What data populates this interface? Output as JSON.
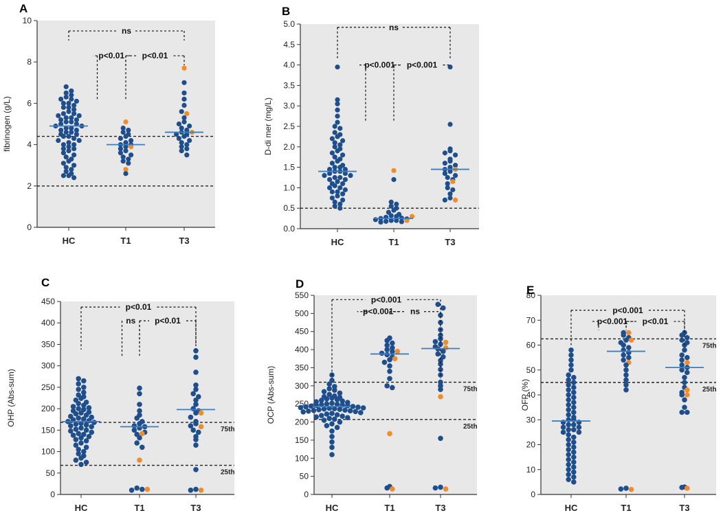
{
  "colors": {
    "background": "#e8e8e8",
    "healthy": "#1f4e8c",
    "highlight": "#f28c28",
    "median": "#3a7fc1",
    "reference": "#222222"
  },
  "chart_data": [
    {
      "panel": "A",
      "type": "scatter",
      "ylabel": "fibrinogen (g/L)",
      "categories": [
        "HC",
        "T1",
        "T3"
      ],
      "ylim": [
        0,
        10
      ],
      "yticks": [
        0,
        2,
        4,
        6,
        8,
        10
      ],
      "ref_lines": [
        {
          "y": 4.4
        },
        {
          "y": 2.0
        }
      ],
      "medians": [
        4.9,
        4.0,
        4.6
      ],
      "series": [
        {
          "name": "HC",
          "category": "HC",
          "blue": [
            6.8,
            6.6,
            6.5,
            6.4,
            6.3,
            6.2,
            6.2,
            6.1,
            6.0,
            6.0,
            5.9,
            5.8,
            5.8,
            5.7,
            5.6,
            5.5,
            5.5,
            5.4,
            5.4,
            5.3,
            5.3,
            5.2,
            5.2,
            5.1,
            5.1,
            5.0,
            5.0,
            4.9,
            4.9,
            4.8,
            4.8,
            4.7,
            4.7,
            4.6,
            4.6,
            4.5,
            4.5,
            4.4,
            4.4,
            4.3,
            4.2,
            4.2,
            4.1,
            4.0,
            4.0,
            3.9,
            3.8,
            3.8,
            3.7,
            3.6,
            3.5,
            3.4,
            3.3,
            3.2,
            3.1,
            3.0,
            2.9,
            2.8,
            2.7,
            2.6,
            2.5,
            2.5,
            2.4
          ],
          "orange": []
        },
        {
          "name": "T1",
          "category": "T1",
          "blue": [
            4.8,
            4.7,
            4.6,
            4.5,
            4.4,
            4.3,
            4.2,
            4.1,
            4.0,
            4.0,
            3.9,
            3.8,
            3.7,
            3.6,
            3.5,
            3.4,
            3.3,
            3.2,
            3.1,
            2.6
          ],
          "orange": [
            5.1,
            3.9,
            2.8
          ]
        },
        {
          "name": "T3",
          "category": "T3",
          "blue": [
            7.0,
            6.5,
            6.2,
            5.9,
            5.6,
            5.3,
            5.1,
            5.0,
            4.9,
            4.8,
            4.7,
            4.6,
            4.5,
            4.5,
            4.4,
            4.3,
            4.2,
            4.1,
            4.0,
            3.9,
            3.8,
            3.7,
            3.5
          ],
          "orange": [
            7.7,
            5.5,
            4.6
          ]
        }
      ],
      "comparisons": [
        {
          "label": "ns",
          "from": 0,
          "to": 2,
          "level": 9.5
        },
        {
          "label": "p<0.01",
          "from": 0.5,
          "to": 1,
          "level": 8.3,
          "join": 1,
          "leg_bottom": 6.2
        },
        {
          "label": "p<0.01",
          "from": 1,
          "to": 2,
          "level": 8.3,
          "join": 1
        }
      ]
    },
    {
      "panel": "B",
      "type": "scatter",
      "ylabel": "D-di mer (mg/L)",
      "categories": [
        "HC",
        "T1",
        "T3"
      ],
      "ylim": [
        0,
        5
      ],
      "yticks": [
        0,
        0.5,
        1.0,
        1.5,
        2.0,
        2.5,
        3.0,
        3.5,
        4.0,
        4.5,
        5.0
      ],
      "ytick_labels": [
        "0.0",
        "0.5",
        "1.0",
        "1.5",
        "2.0",
        "2.5",
        "3.0",
        "3.5",
        "4.0",
        "4.5",
        "5.0"
      ],
      "ref_lines": [
        {
          "y": 0.5
        }
      ],
      "medians": [
        1.4,
        0.25,
        1.45
      ],
      "series": [
        {
          "name": "HC",
          "category": "HC",
          "blue": [
            3.95,
            3.15,
            3.05,
            2.9,
            2.75,
            2.6,
            2.5,
            2.45,
            2.35,
            2.3,
            2.25,
            2.2,
            2.15,
            2.1,
            2.05,
            2.0,
            1.95,
            1.9,
            1.85,
            1.8,
            1.75,
            1.7,
            1.65,
            1.6,
            1.55,
            1.5,
            1.5,
            1.45,
            1.45,
            1.4,
            1.4,
            1.35,
            1.35,
            1.3,
            1.3,
            1.25,
            1.25,
            1.2,
            1.2,
            1.15,
            1.1,
            1.1,
            1.05,
            1.0,
            1.0,
            0.95,
            0.9,
            0.9,
            0.85,
            0.8,
            0.75,
            0.7,
            0.65,
            0.6,
            0.55,
            0.5
          ],
          "orange": []
        },
        {
          "name": "T1",
          "category": "T1",
          "blue": [
            1.2,
            0.65,
            0.6,
            0.55,
            0.5,
            0.45,
            0.4,
            0.35,
            0.32,
            0.3,
            0.28,
            0.26,
            0.25,
            0.24,
            0.22,
            0.2,
            0.2,
            0.18,
            0.17,
            0.16
          ],
          "orange": [
            1.42,
            0.3,
            0.2
          ]
        },
        {
          "name": "T3",
          "category": "T3",
          "blue": [
            3.95,
            2.55,
            1.95,
            1.9,
            1.85,
            1.8,
            1.7,
            1.65,
            1.6,
            1.55,
            1.5,
            1.45,
            1.4,
            1.35,
            1.3,
            1.25,
            1.2,
            1.1,
            1.0,
            0.95,
            0.85,
            0.75,
            0.7
          ],
          "orange": [
            1.45,
            1.15,
            0.7
          ]
        }
      ],
      "comparisons": [
        {
          "label": "ns",
          "from": 0,
          "to": 2,
          "level": 4.92,
          "gap": 0.6,
          "leg_bottom": 4.15
        },
        {
          "label": "p<0.001",
          "from": 0.5,
          "to": 1,
          "level": 4.0,
          "join": 1,
          "leg_bottom": 2.6
        },
        {
          "label": "p<0.001",
          "from": 1,
          "to": 2,
          "level": 4.0,
          "join": 1,
          "leg_bottom": 4.0
        }
      ]
    },
    {
      "panel": "C",
      "type": "scatter",
      "ylabel": "OHP (Abs-sum)",
      "categories": [
        "HC",
        "T1",
        "T3"
      ],
      "ylim": [
        0,
        450
      ],
      "yticks": [
        0,
        50,
        100,
        150,
        200,
        250,
        300,
        350,
        400,
        450
      ],
      "ref_lines": [
        {
          "y": 168,
          "label": "75th"
        },
        {
          "y": 68,
          "label": "25th"
        }
      ],
      "medians": [
        170,
        158,
        198
      ],
      "series": [
        {
          "name": "HC",
          "category": "HC",
          "blue": [
            270,
            265,
            258,
            250,
            245,
            238,
            232,
            228,
            224,
            220,
            215,
            212,
            208,
            205,
            202,
            200,
            198,
            195,
            192,
            190,
            188,
            185,
            182,
            180,
            178,
            176,
            174,
            172,
            170,
            168,
            166,
            164,
            162,
            160,
            158,
            155,
            152,
            150,
            148,
            145,
            142,
            140,
            138,
            135,
            132,
            128,
            125,
            120,
            115,
            110,
            105,
            100,
            95,
            90,
            85,
            80,
            75,
            70
          ],
          "orange": []
        },
        {
          "name": "T1",
          "category": "T1",
          "blue": [
            248,
            235,
            210,
            195,
            185,
            178,
            170,
            165,
            160,
            158,
            155,
            150,
            145,
            140,
            132,
            120,
            110,
            15,
            12,
            10
          ],
          "orange": [
            142,
            80,
            12
          ]
        },
        {
          "name": "T3",
          "category": "T3",
          "blue": [
            335,
            320,
            285,
            255,
            245,
            235,
            228,
            220,
            210,
            200,
            195,
            190,
            180,
            170,
            165,
            160,
            150,
            145,
            135,
            128,
            115,
            58,
            12,
            10
          ],
          "orange": [
            190,
            158,
            10
          ]
        }
      ],
      "comparisons": [
        {
          "label": "p<0.01",
          "from": 0,
          "to": 2,
          "level": 437,
          "leg_bottom": 338
        },
        {
          "label": "ns",
          "from": 0.7,
          "to": 1,
          "level": 405,
          "join": 1,
          "leg_bottom": 320
        },
        {
          "label": "p<0.01",
          "from": 1,
          "to": 2,
          "level": 405,
          "join": 1,
          "leg_bottom": 350
        }
      ]
    },
    {
      "panel": "D",
      "type": "scatter",
      "ylabel": "OCP (Abs-sum)",
      "categories": [
        "HC",
        "T1",
        "T3"
      ],
      "ylim": [
        0,
        550
      ],
      "yticks": [
        0,
        50,
        100,
        150,
        200,
        250,
        300,
        350,
        400,
        450,
        500,
        550
      ],
      "ref_lines": [
        {
          "y": 310,
          "label": "75th"
        },
        {
          "y": 207,
          "label": "25th"
        }
      ],
      "medians": [
        243,
        388,
        403
      ],
      "series": [
        {
          "name": "HC",
          "category": "HC",
          "blue": [
            330,
            315,
            305,
            298,
            292,
            288,
            284,
            280,
            276,
            272,
            270,
            268,
            266,
            264,
            262,
            260,
            258,
            256,
            254,
            252,
            250,
            249,
            248,
            247,
            246,
            245,
            244,
            243,
            242,
            241,
            240,
            239,
            238,
            237,
            236,
            235,
            234,
            233,
            232,
            231,
            230,
            229,
            228,
            226,
            224,
            222,
            220,
            218,
            216,
            214,
            212,
            210,
            208,
            205,
            200,
            195,
            190,
            185,
            175,
            160,
            145,
            130,
            110
          ],
          "orange": []
        },
        {
          "name": "T1",
          "category": "T1",
          "blue": [
            432,
            425,
            418,
            412,
            405,
            400,
            395,
            390,
            386,
            380,
            372,
            365,
            355,
            340,
            320,
            300,
            295,
            22,
            18
          ],
          "orange": [
            395,
            375,
            168,
            15
          ]
        },
        {
          "name": "T3",
          "category": "T3",
          "blue": [
            525,
            515,
            495,
            475,
            455,
            440,
            430,
            422,
            415,
            408,
            402,
            395,
            388,
            380,
            370,
            360,
            345,
            330,
            310,
            300,
            290,
            155,
            20,
            18
          ],
          "orange": [
            420,
            405,
            270,
            15
          ]
        }
      ],
      "comparisons": [
        {
          "label": "p<0.001",
          "from": 0,
          "to": 2,
          "level": 538,
          "leg_bottom": 320
        },
        {
          "label": "p<0.001",
          "from": 0.6,
          "to": 1,
          "level": 505,
          "join": 1,
          "leg_bottom": 500
        },
        {
          "label": "ns",
          "from": 1,
          "to": 2,
          "level": 505,
          "join": 1,
          "leg_bottom": 500
        }
      ]
    },
    {
      "panel": "E",
      "type": "scatter",
      "ylabel": "OFP (%)",
      "categories": [
        "HC",
        "T1",
        "T3"
      ],
      "ylim": [
        0,
        80
      ],
      "yticks": [
        0,
        10,
        20,
        30,
        40,
        50,
        60,
        70,
        80
      ],
      "ref_lines": [
        {
          "y": 62.5,
          "label": "75th"
        },
        {
          "y": 45,
          "label": "25th"
        }
      ],
      "medians": [
        29.5,
        57.5,
        51
      ],
      "series": [
        {
          "name": "HC",
          "category": "HC",
          "blue": [
            58,
            56,
            54,
            52,
            50,
            48,
            47,
            46,
            45,
            44,
            43,
            42,
            41,
            40,
            39,
            38,
            37,
            36,
            35,
            34,
            33,
            32,
            31,
            30,
            30,
            29,
            29,
            28,
            28,
            27,
            27,
            26,
            26,
            25,
            25,
            24,
            23,
            22,
            21,
            20,
            19,
            18,
            17,
            16,
            15,
            14,
            13,
            12,
            11,
            10,
            9,
            8,
            7,
            6,
            5
          ],
          "orange": []
        },
        {
          "name": "T1",
          "category": "T1",
          "blue": [
            65,
            64,
            63,
            62,
            61,
            60,
            59,
            58,
            57,
            56,
            55,
            54,
            52,
            50,
            48,
            46,
            44,
            42,
            2.5,
            2.2
          ],
          "orange": [
            65,
            62,
            53,
            2.0
          ]
        },
        {
          "name": "T3",
          "category": "T3",
          "blue": [
            65,
            64,
            63,
            62,
            61,
            60,
            58,
            56,
            55,
            54,
            52,
            51,
            50,
            49,
            47,
            45,
            43,
            41,
            40,
            38,
            35,
            33,
            33,
            3,
            2.8
          ],
          "orange": [
            53,
            42,
            40,
            2.5
          ]
        }
      ],
      "comparisons": [
        {
          "label": "p<0.001",
          "from": 0,
          "to": 2,
          "level": 74,
          "leg_bottom": 60
        },
        {
          "label": "p<0.001",
          "from": 0.5,
          "to": 1,
          "level": 69.5,
          "join": 1,
          "leg_bottom": 66
        },
        {
          "label": "p<0.01",
          "from": 1,
          "to": 2,
          "level": 69.5,
          "join": 1,
          "leg_bottom": 66
        }
      ]
    }
  ]
}
